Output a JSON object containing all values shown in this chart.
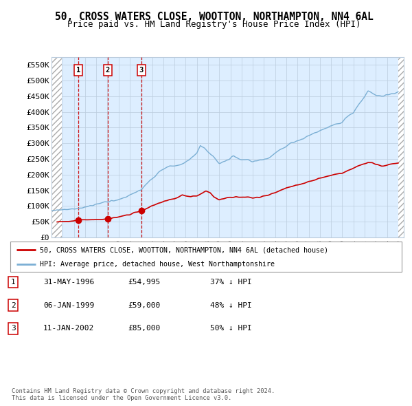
{
  "title": "50, CROSS WATERS CLOSE, WOOTTON, NORTHAMPTON, NN4 6AL",
  "subtitle": "Price paid vs. HM Land Registry's House Price Index (HPI)",
  "ylim": [
    0,
    575000
  ],
  "yticks": [
    0,
    50000,
    100000,
    150000,
    200000,
    250000,
    300000,
    350000,
    400000,
    450000,
    500000,
    550000
  ],
  "ytick_labels": [
    "£0",
    "£50K",
    "£100K",
    "£150K",
    "£200K",
    "£250K",
    "£300K",
    "£350K",
    "£400K",
    "£450K",
    "£500K",
    "£550K"
  ],
  "xlim_start": 1994.0,
  "xlim_end": 2025.5,
  "xtick_years": [
    1994,
    1995,
    1996,
    1997,
    1998,
    1999,
    2000,
    2001,
    2002,
    2003,
    2004,
    2005,
    2006,
    2007,
    2008,
    2009,
    2010,
    2011,
    2012,
    2013,
    2014,
    2015,
    2016,
    2017,
    2018,
    2019,
    2020,
    2021,
    2022,
    2023,
    2024,
    2025
  ],
  "hpi_color": "#7bafd4",
  "price_color": "#cc0000",
  "marker_color": "#cc0000",
  "dashed_line_color": "#cc0000",
  "sale_points": [
    {
      "year": 1996.415,
      "price": 54995,
      "label": "1"
    },
    {
      "year": 1999.02,
      "price": 59000,
      "label": "2"
    },
    {
      "year": 2002.03,
      "price": 85000,
      "label": "3"
    }
  ],
  "legend_label_red": "50, CROSS WATERS CLOSE, WOOTTON, NORTHAMPTON, NN4 6AL (detached house)",
  "legend_label_blue": "HPI: Average price, detached house, West Northamptonshire",
  "table_rows": [
    {
      "num": "1",
      "date": "31-MAY-1996",
      "price": "£54,995",
      "hpi": "37% ↓ HPI"
    },
    {
      "num": "2",
      "date": "06-JAN-1999",
      "price": "£59,000",
      "hpi": "48% ↓ HPI"
    },
    {
      "num": "3",
      "date": "11-JAN-2002",
      "price": "£85,000",
      "hpi": "50% ↓ HPI"
    }
  ],
  "footnote": "Contains HM Land Registry data © Crown copyright and database right 2024.\nThis data is licensed under the Open Government Licence v3.0.",
  "bg_color": "#ffffff",
  "plot_bg_color": "#ddeeff",
  "hatch_color": "#aaaaaa",
  "grid_color": "#bbccdd",
  "title_fontsize": 10.5,
  "subtitle_fontsize": 9,
  "axis_label_fontsize": 8
}
